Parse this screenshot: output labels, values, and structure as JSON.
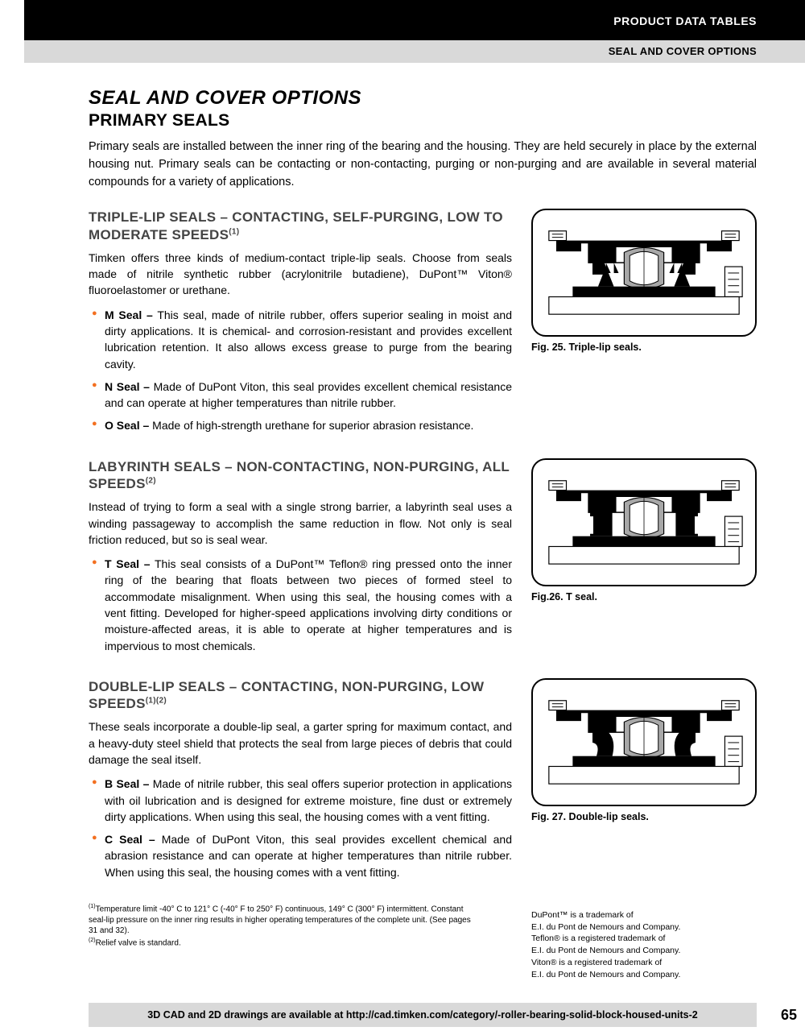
{
  "header": {
    "line1": "PRODUCT DATA TABLES",
    "line2": "SEAL AND COVER OPTIONS"
  },
  "title": {
    "main": "SEAL AND COVER OPTIONS",
    "sub": "PRIMARY SEALS"
  },
  "intro": "Primary seals are installed between the inner ring of the bearing and the housing. They are held securely in place by the external housing nut. Primary seals can be contacting or non-contacting, purging or non-purging and are available in several material compounds for a variety of applications.",
  "sections": [
    {
      "head": "TRIPLE-LIP SEALS – CONTACTING, SELF-PURGING, LOW TO MODERATE SPEEDS",
      "sup": "(1)",
      "body": "Timken offers three kinds of medium-contact triple-lip seals. Choose from seals made of nitrile synthetic rubber (acrylonitrile butadiene), DuPont™ Viton® fluoroelastomer or urethane.",
      "bullets": [
        {
          "label": "M Seal –",
          "text": " This seal, made of nitrile rubber, offers superior sealing in moist and dirty applications. It is chemical- and corrosion-resistant and provides excellent lubrication retention. It also allows excess grease to purge from the bearing cavity."
        },
        {
          "label": "N Seal –",
          "text": " Made of DuPont Viton, this seal provides excellent chemical resistance and can operate at higher temperatures than nitrile rubber."
        },
        {
          "label": "O Seal –",
          "text": " Made of high-strength urethane for superior abrasion resistance."
        }
      ],
      "fig_caption": "Fig. 25. Triple-lip seals."
    },
    {
      "head": "LABYRINTH SEALS – NON-CONTACTING, NON-PURGING, ALL SPEEDS",
      "sup": "(2)",
      "body": "Instead of trying to form a seal with a single strong barrier, a labyrinth seal uses a winding passageway to accomplish the same reduction in flow. Not only is seal friction reduced, but so is seal wear.",
      "bullets": [
        {
          "label": "T Seal –",
          "text": " This seal consists of a DuPont™ Teflon® ring pressed onto the inner ring of the bearing that floats between two pieces of formed steel to accommodate misalignment. When using this seal, the housing comes with a vent fitting. Developed for higher-speed applications involving dirty conditions or moisture-affected areas, it is able to operate at higher temperatures and is impervious to most chemicals."
        }
      ],
      "fig_caption": "Fig.26. T seal."
    },
    {
      "head": "DOUBLE-LIP SEALS – CONTACTING, NON-PURGING, LOW SPEEDS",
      "sup": "(1)(2)",
      "body": "These seals incorporate a double-lip seal, a garter spring for maximum contact, and a heavy-duty steel shield that protects the seal from large pieces of debris that could damage the seal itself.",
      "bullets": [
        {
          "label": "B Seal –",
          "text": " Made of nitrile rubber, this seal offers superior protection in applications with oil lubrication and is designed for extreme moisture, fine dust or extremely dirty applications. When using this seal, the housing comes with a vent fitting."
        },
        {
          "label": "C Seal –",
          "text": " Made of DuPont Viton, this seal provides excellent chemical and abrasion resistance and can operate at higher temperatures than nitrile rubber. When using this seal, the housing comes with a vent fitting."
        }
      ],
      "fig_caption": "Fig. 27. Double-lip seals."
    }
  ],
  "trademark_note": "DuPont™ is a trademark of\nE.I. du Pont de Nemours and Company.\nTeflon® is a registered trademark of\nE.I. du Pont de Nemours and Company.\nViton® is a registered trademark of\nE.I. du Pont de Nemours and Company.",
  "footnotes": {
    "f1_sup": "(1)",
    "f1": "Temperature limit -40° C to 121° C (-40° F to 250° F) continuous, 149° C (300° F) intermittent. Constant seal-lip pressure on the inner ring results in higher operating temperatures of the complete unit. (See pages 31 and 32).",
    "f2_sup": "(2)",
    "f2": "Relief valve is standard."
  },
  "footer": {
    "text": "3D CAD and 2D drawings are available at http://cad.timken.com/category/-roller-bearing-solid-block-housed-units-2",
    "page": "65"
  },
  "colors": {
    "accent": "#f37021",
    "gray_light": "#d9d9d9",
    "gray_head": "#444444"
  }
}
